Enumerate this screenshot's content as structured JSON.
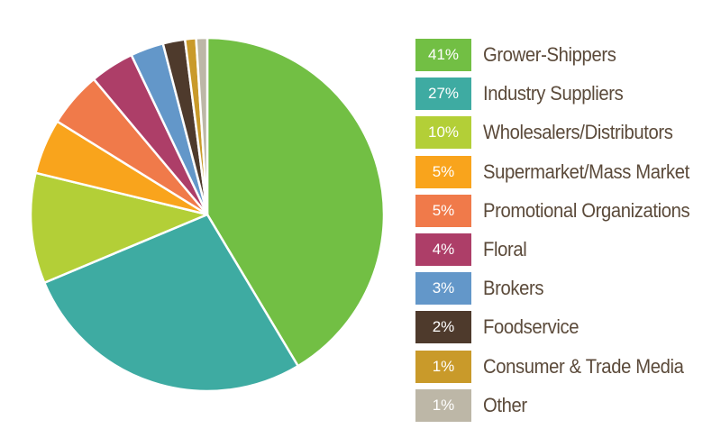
{
  "chart_data": {
    "type": "pie",
    "slices": [
      {
        "label": "Grower-Shippers",
        "value": 41,
        "display": "41%",
        "color": "#72bf44"
      },
      {
        "label": "Industry Suppliers",
        "value": 27,
        "display": "27%",
        "color": "#3eaba2"
      },
      {
        "label": "Wholesalers/Distributors",
        "value": 10,
        "display": "10%",
        "color": "#b3cf37"
      },
      {
        "label": "Supermarket/Mass Market",
        "value": 5,
        "display": "5%",
        "color": "#f9a41c"
      },
      {
        "label": "Promotional Organizations",
        "value": 5,
        "display": "5%",
        "color": "#f07a4a"
      },
      {
        "label": "Floral",
        "value": 4,
        "display": "4%",
        "color": "#ad3e68"
      },
      {
        "label": "Brokers",
        "value": 3,
        "display": "3%",
        "color": "#6397c9"
      },
      {
        "label": "Foodservice",
        "value": 2,
        "display": "2%",
        "color": "#4e3a2c"
      },
      {
        "label": "Consumer & Trade Media",
        "value": 1,
        "display": "1%",
        "color": "#c99a2a"
      },
      {
        "label": "Other",
        "value": 1,
        "display": "1%",
        "color": "#bdb7a7"
      }
    ],
    "legend_position": "right"
  }
}
